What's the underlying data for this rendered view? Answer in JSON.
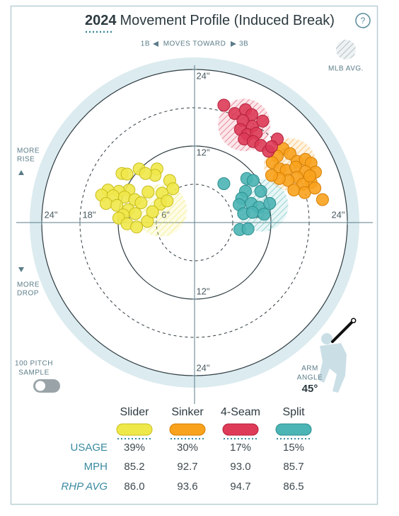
{
  "chart_data": {
    "type": "scatter",
    "title_year": "2024",
    "title": "Movement Profile (Induced Break)",
    "help": "?",
    "x_label": {
      "left": "1B",
      "middle": "MOVES TOWARD",
      "right": "3B"
    },
    "mlb_avg_label": "MLB AVG.",
    "y_label_top": [
      "MORE",
      "RISE"
    ],
    "y_label_bottom": [
      "MORE",
      "DROP"
    ],
    "toggle_label": [
      "100 PITCH",
      "SAMPLE"
    ],
    "arm_angle": {
      "label": [
        "ARM",
        "ANGLE"
      ],
      "value": 45,
      "value_label": "45°"
    },
    "xlim": [
      -28,
      28
    ],
    "ylim": [
      -28,
      28
    ],
    "xticks": [
      {
        "value": -24,
        "label": "24\""
      },
      {
        "value": -18,
        "label": "18\""
      },
      {
        "value": -12,
        "label": "12\""
      },
      {
        "value": -6,
        "label": "6\""
      },
      {
        "value": 12,
        "label": "12\""
      },
      {
        "value": 24,
        "label": "24\""
      }
    ],
    "yticks": [
      {
        "value": 24,
        "label": "24\""
      },
      {
        "value": 12,
        "label": "12\""
      },
      {
        "value": -12,
        "label": "12\""
      },
      {
        "value": -24,
        "label": "24\""
      }
    ],
    "series": [
      {
        "name": "Slider",
        "color": "#efe84a",
        "stroke": "#c8bd1c",
        "mlb_avg": [
          -5.3,
          1.9
        ],
        "x": [
          -11.4,
          -10.6,
          -8.7,
          -5.9,
          -6.2,
          -7.7,
          -3.9,
          -3.4,
          -5.1,
          -7.3,
          -10.3,
          -11.9,
          -13.6,
          -14.6,
          -12.8,
          -11.0,
          -9.4,
          -13.9,
          -12.2,
          -10.4,
          -9.3,
          -11.2,
          -11.9,
          -10.6,
          -9.1,
          -7.4,
          -5.4,
          -4.3,
          -6.6,
          -8.4
        ],
        "values": [
          7.7,
          7.6,
          8.4,
          8.4,
          7.4,
          7.7,
          6.6,
          5.3,
          4.6,
          4.8,
          5.1,
          4.9,
          5.1,
          4.3,
          4.2,
          4.0,
          3.6,
          3.0,
          2.7,
          2.0,
          1.4,
          1.2,
          0.7,
          -0.2,
          -0.7,
          0.2,
          2.9,
          3.4,
          1.7,
          3.1
        ]
      },
      {
        "name": "Sinker",
        "color": "#f8a21d",
        "stroke": "#d57f06",
        "mlb_avg": [
          15.0,
          9.1
        ],
        "x": [
          13.9,
          13.0,
          15.0,
          16.1,
          12.2,
          13.4,
          14.4,
          15.9,
          17.4,
          18.3,
          19.0,
          17.4,
          16.1,
          14.7,
          13.3,
          12.1,
          18.3,
          17.0,
          15.6,
          17.3,
          18.9,
          20.1,
          18.1
        ],
        "values": [
          11.6,
          10.4,
          10.8,
          9.6,
          9.4,
          8.4,
          8.2,
          8.7,
          9.9,
          9.3,
          7.9,
          8.0,
          7.1,
          6.6,
          6.9,
          7.4,
          6.3,
          6.0,
          5.1,
          4.7,
          5.4,
          3.6,
          7.3
        ]
      },
      {
        "name": "4-Seam",
        "color": "#dd3b57",
        "stroke": "#b5203b",
        "mlb_avg": [
          7.8,
          15.3
        ],
        "x": [
          4.6,
          6.3,
          8.0,
          9.0,
          7.6,
          9.1,
          10.7,
          7.2,
          8.3,
          9.7,
          7.8,
          9.2,
          10.4,
          11.6,
          13.0,
          12.1
        ],
        "values": [
          18.4,
          17.1,
          17.7,
          16.9,
          16.0,
          15.1,
          15.9,
          14.6,
          13.8,
          14.0,
          13.1,
          12.7,
          12.1,
          11.2,
          13.1,
          11.9
        ]
      },
      {
        "name": "Split",
        "color": "#4bb4b4",
        "stroke": "#2c8f8f",
        "mlb_avg": [
          10.6,
          2.7
        ],
        "x": [
          4.6,
          8.2,
          9.2,
          8.0,
          10.4,
          7.4,
          8.9,
          7.0,
          10.1,
          11.8,
          7.7,
          9.1,
          10.9,
          7.1,
          8.4
        ],
        "values": [
          6.1,
          6.9,
          6.6,
          4.9,
          4.9,
          3.8,
          3.0,
          2.8,
          2.4,
          3.0,
          1.4,
          1.6,
          1.3,
          -1.1,
          -1.0
        ]
      }
    ]
  },
  "table": {
    "rows": [
      {
        "label": "USAGE",
        "values": [
          "39%",
          "30%",
          "17%",
          "15%"
        ]
      },
      {
        "label": "MPH",
        "values": [
          "85.2",
          "92.7",
          "93.0",
          "85.7"
        ]
      },
      {
        "label": "RHP AVG",
        "values": [
          "86.0",
          "93.6",
          "94.7",
          "86.5"
        ]
      }
    ]
  }
}
